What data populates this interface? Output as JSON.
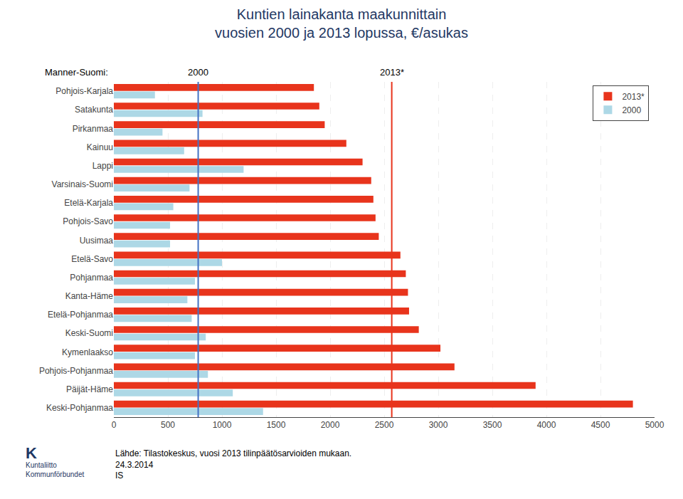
{
  "chart_data": {
    "type": "bar",
    "orientation": "horizontal",
    "title": "Kuntien lainakanta maakunnittain\nvuosien 2000 ja 2013 lopussa, €/asukas",
    "categories": [
      "Pohjois-Karjala",
      "Satakunta",
      "Pirkanmaa",
      "Kainuu",
      "Lappi",
      "Varsinais-Suomi",
      "Etelä-Karjala",
      "Pohjois-Savo",
      "Uusimaa",
      "Etelä-Savo",
      "Pohjanmaa",
      "Kanta-Häme",
      "Etelä-Pohjanmaa",
      "Keski-Suomi",
      "Kymenlaakso",
      "Pohjois-Pohjanmaa",
      "Päijät-Häme",
      "Keski-Pohjanmaa"
    ],
    "series": [
      {
        "name": "2013*",
        "color": "#E8341C",
        "values": [
          1850,
          1900,
          1950,
          2150,
          2300,
          2380,
          2400,
          2420,
          2450,
          2650,
          2700,
          2720,
          2730,
          2820,
          3020,
          3150,
          3900,
          4800
        ]
      },
      {
        "name": "2000",
        "color": "#ADD8E6",
        "values": [
          380,
          820,
          450,
          650,
          1200,
          700,
          550,
          520,
          520,
          1000,
          750,
          680,
          720,
          850,
          750,
          870,
          1100,
          1380
        ]
      }
    ],
    "reference_title": "Manner-Suomi:",
    "reference_lines": [
      {
        "label": "2000",
        "value": 780,
        "color": "#4472C4"
      },
      {
        "label": "2013*",
        "value": 2570,
        "color": "#E8341C"
      }
    ],
    "xlim": [
      0,
      5000
    ],
    "xticks": [
      0,
      500,
      1000,
      1500,
      2000,
      2500,
      3000,
      3500,
      4000,
      4500,
      5000
    ],
    "grid": true,
    "legend": "upper right",
    "notes": [
      "Lähde: Tilastokeskus, vuosi 2013 tilinpäätösarvioiden mukaan.",
      "24.3.2014",
      "IS"
    ],
    "logo": [
      "K",
      "Kuntaliitto",
      "Kommunförbundet"
    ]
  }
}
